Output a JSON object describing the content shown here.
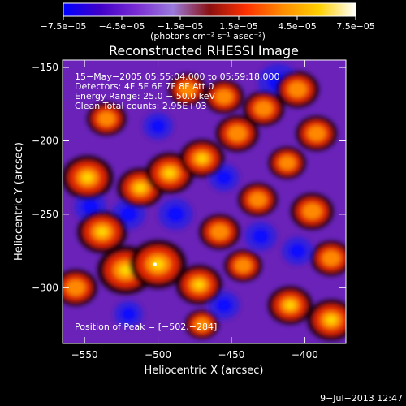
{
  "chart_data": {
    "type": "heatmap",
    "title": "Reconstructed RHESSI Image",
    "xlabel": "Heliocentric X (arcsec)",
    "ylabel": "Heliocentric Y (arcsec)",
    "xlim": [
      -565,
      -372
    ],
    "ylim": [
      -338,
      -145
    ],
    "x_ticks": [
      -550,
      -500,
      -450,
      -400
    ],
    "y_ticks": [
      -150,
      -200,
      -250,
      -300
    ],
    "x_tick_labels": [
      "−550",
      "−500",
      "−450",
      "−400"
    ],
    "y_tick_labels": [
      "−150",
      "−200",
      "−250",
      "−300"
    ],
    "colorbar": {
      "range": [
        -7.5e-05,
        7.5e-05
      ],
      "tick_labels": [
        "−7.5e−05",
        "−4.5e−05",
        "−1.5e−05",
        "1.5e−05",
        "4.5e−05",
        "7.5e−05"
      ],
      "unit_label": "(photons cm⁻² s⁻¹ asec⁻²)",
      "colors": [
        "#0000ff",
        "#4000c8",
        "#7a2cd4",
        "#9a7adc",
        "#8a1010",
        "#ff3000",
        "#ff8c00",
        "#ffd000",
        "#ffffff"
      ]
    },
    "annotations": {
      "line1": "15−May−2005 05:55:04.000 to 05:59:18.000",
      "line2": "Detectors: 4F 5F 6F 7F 8F  Att 0",
      "line3": "Energy Range: 25.0 − 50.0 keV",
      "line4": "Clean     Total counts: 2.95E+03",
      "peak": "Position of Peak = [−502,−284]"
    },
    "peak_position": [
      -502,
      -284
    ],
    "hotspots": [
      {
        "x": -548,
        "y": -225,
        "v": 0.85
      },
      {
        "x": -538,
        "y": -262,
        "v": 0.8
      },
      {
        "x": -522,
        "y": -288,
        "v": 1.0
      },
      {
        "x": -500,
        "y": -284,
        "v": 1.0
      },
      {
        "x": -472,
        "y": -298,
        "v": 0.7
      },
      {
        "x": -512,
        "y": -232,
        "v": 0.7
      },
      {
        "x": -492,
        "y": -222,
        "v": 0.75
      },
      {
        "x": -470,
        "y": -212,
        "v": 0.65
      },
      {
        "x": -446,
        "y": -195,
        "v": 0.6
      },
      {
        "x": -428,
        "y": -178,
        "v": 0.55
      },
      {
        "x": -405,
        "y": -165,
        "v": 0.6
      },
      {
        "x": -392,
        "y": -195,
        "v": 0.55
      },
      {
        "x": -412,
        "y": -215,
        "v": 0.45
      },
      {
        "x": -458,
        "y": -262,
        "v": 0.55
      },
      {
        "x": -432,
        "y": -240,
        "v": 0.5
      },
      {
        "x": -395,
        "y": -248,
        "v": 0.6
      },
      {
        "x": -382,
        "y": -280,
        "v": 0.55
      },
      {
        "x": -442,
        "y": -285,
        "v": 0.45
      },
      {
        "x": -410,
        "y": -312,
        "v": 0.65
      },
      {
        "x": -382,
        "y": -322,
        "v": 0.75
      },
      {
        "x": -470,
        "y": -325,
        "v": 0.35
      },
      {
        "x": -535,
        "y": -185,
        "v": 0.5
      },
      {
        "x": -556,
        "y": -300,
        "v": 0.6
      },
      {
        "x": -480,
        "y": -165,
        "v": 0.45
      },
      {
        "x": -455,
        "y": -170,
        "v": 0.5
      }
    ],
    "coldspots": [
      {
        "x": -418,
        "y": -160,
        "v": -0.9
      },
      {
        "x": -520,
        "y": -250,
        "v": -0.55
      },
      {
        "x": -488,
        "y": -250,
        "v": -0.6
      },
      {
        "x": -546,
        "y": -245,
        "v": -0.5
      },
      {
        "x": -430,
        "y": -265,
        "v": -0.5
      },
      {
        "x": -405,
        "y": -275,
        "v": -0.45
      },
      {
        "x": -500,
        "y": -190,
        "v": -0.4
      },
      {
        "x": -455,
        "y": -225,
        "v": -0.4
      },
      {
        "x": -455,
        "y": -312,
        "v": -0.45
      },
      {
        "x": -520,
        "y": -318,
        "v": -0.35
      }
    ]
  },
  "timestamp": "9−Jul−2013 12:47"
}
